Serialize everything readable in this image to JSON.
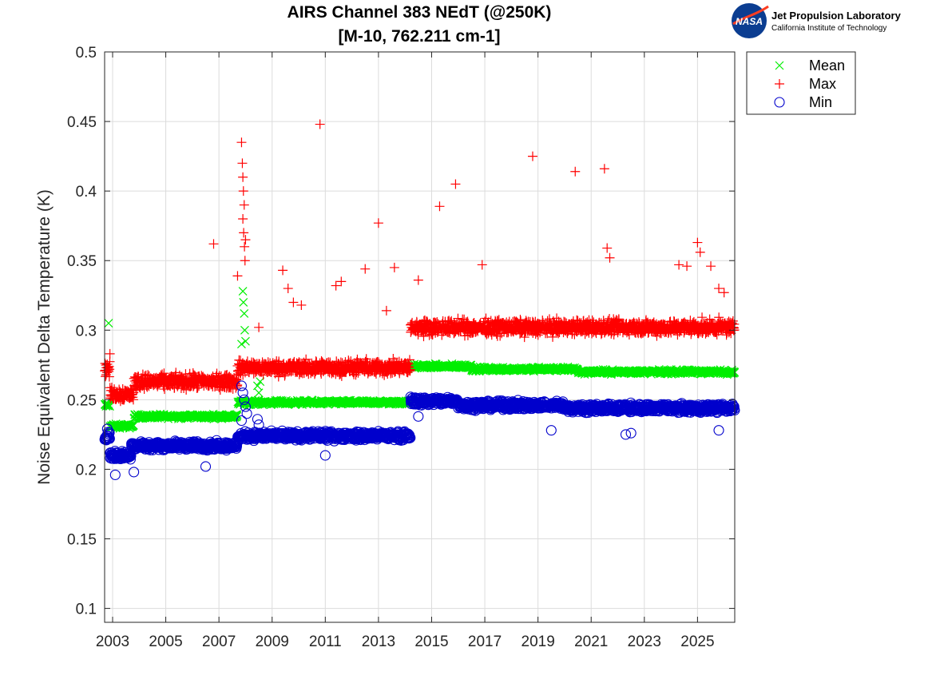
{
  "logo": {
    "nasa_text": "NASA",
    "org_name": "Jet Propulsion Laboratory",
    "org_sub": "California Institute of Technology",
    "nasa_blue": "#0b3d91",
    "nasa_red": "#fc3d21"
  },
  "chart_data": {
    "type": "scatter",
    "title": [
      "AIRS Channel 383 NEdT (@250K)",
      "[M-10, 762.211 cm-1]"
    ],
    "xlabel": "",
    "ylabel": "Noise Equivalent Delta Temperature (K)",
    "xlim": [
      2002.7,
      2026.4
    ],
    "ylim": [
      0.09,
      0.5
    ],
    "xticks": [
      2003,
      2005,
      2007,
      2009,
      2011,
      2013,
      2015,
      2017,
      2019,
      2021,
      2023,
      2025
    ],
    "yticks": [
      0.1,
      0.15,
      0.2,
      0.25,
      0.3,
      0.35,
      0.4,
      0.45,
      0.5
    ],
    "ytick_labels": [
      "0.1",
      "0.15",
      "0.2",
      "0.25",
      "0.3",
      "0.35",
      "0.4",
      "0.45",
      "0.5"
    ],
    "grid": true,
    "legend_position": "outside top-right",
    "series": [
      {
        "name": "Mean",
        "marker": "x",
        "color": "#00ee00",
        "levels": [
          [
            2002.7,
            2002.9,
            0.246
          ],
          [
            2002.9,
            2003.8,
            0.231
          ],
          [
            2003.8,
            2007.7,
            0.238
          ],
          [
            2007.7,
            2014.2,
            0.248
          ],
          [
            2014.2,
            2016.5,
            0.274
          ],
          [
            2016.5,
            2020.5,
            0.272
          ],
          [
            2020.5,
            2026.4,
            0.27
          ]
        ],
        "outliers": [
          [
            2002.85,
            0.305
          ],
          [
            2007.9,
            0.328
          ],
          [
            2007.92,
            0.32
          ],
          [
            2007.95,
            0.312
          ],
          [
            2007.97,
            0.3
          ],
          [
            2008.0,
            0.292
          ],
          [
            2007.85,
            0.29
          ],
          [
            2008.45,
            0.26
          ],
          [
            2008.5,
            0.255
          ],
          [
            2008.55,
            0.263
          ]
        ]
      },
      {
        "name": "Max",
        "marker": "+",
        "color": "#ff0000",
        "levels": [
          [
            2002.7,
            2002.9,
            0.272
          ],
          [
            2002.9,
            2003.8,
            0.254
          ],
          [
            2003.8,
            2007.7,
            0.263
          ],
          [
            2007.7,
            2014.2,
            0.273
          ],
          [
            2014.2,
            2026.4,
            0.302
          ]
        ],
        "outliers": [
          [
            2002.9,
            0.283
          ],
          [
            2006.8,
            0.362
          ],
          [
            2007.7,
            0.339
          ],
          [
            2007.85,
            0.435
          ],
          [
            2007.88,
            0.42
          ],
          [
            2007.9,
            0.41
          ],
          [
            2007.92,
            0.4
          ],
          [
            2007.95,
            0.39
          ],
          [
            2007.9,
            0.38
          ],
          [
            2007.93,
            0.37
          ],
          [
            2007.96,
            0.36
          ],
          [
            2007.98,
            0.35
          ],
          [
            2008.0,
            0.365
          ],
          [
            2008.5,
            0.302
          ],
          [
            2009.4,
            0.343
          ],
          [
            2009.6,
            0.33
          ],
          [
            2009.8,
            0.32
          ],
          [
            2010.1,
            0.318
          ],
          [
            2010.8,
            0.448
          ],
          [
            2011.4,
            0.332
          ],
          [
            2011.6,
            0.335
          ],
          [
            2012.5,
            0.344
          ],
          [
            2013.0,
            0.377
          ],
          [
            2013.3,
            0.314
          ],
          [
            2013.6,
            0.345
          ],
          [
            2014.5,
            0.336
          ],
          [
            2015.3,
            0.389
          ],
          [
            2015.9,
            0.405
          ],
          [
            2016.9,
            0.347
          ],
          [
            2018.8,
            0.425
          ],
          [
            2020.4,
            0.414
          ],
          [
            2021.5,
            0.416
          ],
          [
            2021.6,
            0.359
          ],
          [
            2021.7,
            0.352
          ],
          [
            2024.3,
            0.347
          ],
          [
            2024.6,
            0.346
          ],
          [
            2025.0,
            0.363
          ],
          [
            2025.1,
            0.356
          ],
          [
            2025.5,
            0.346
          ],
          [
            2025.8,
            0.33
          ],
          [
            2026.0,
            0.327
          ]
        ]
      },
      {
        "name": "Min",
        "marker": "o",
        "color": "#0000cc",
        "levels": [
          [
            2002.7,
            2002.9,
            0.224
          ],
          [
            2002.9,
            2003.7,
            0.21
          ],
          [
            2003.7,
            2007.7,
            0.217
          ],
          [
            2007.7,
            2014.2,
            0.224
          ],
          [
            2014.2,
            2016.0,
            0.249
          ],
          [
            2016.0,
            2020.0,
            0.246
          ],
          [
            2020.0,
            2026.4,
            0.244
          ]
        ],
        "outliers": [
          [
            2002.8,
            0.229
          ],
          [
            2003.1,
            0.196
          ],
          [
            2003.8,
            0.198
          ],
          [
            2006.5,
            0.202
          ],
          [
            2007.85,
            0.26
          ],
          [
            2007.9,
            0.255
          ],
          [
            2007.95,
            0.25
          ],
          [
            2008.0,
            0.245
          ],
          [
            2008.05,
            0.24
          ],
          [
            2007.85,
            0.235
          ],
          [
            2008.45,
            0.236
          ],
          [
            2008.5,
            0.232
          ],
          [
            2011.0,
            0.21
          ],
          [
            2014.5,
            0.238
          ],
          [
            2019.5,
            0.228
          ],
          [
            2022.3,
            0.225
          ],
          [
            2022.5,
            0.226
          ],
          [
            2025.8,
            0.228
          ]
        ]
      }
    ]
  }
}
